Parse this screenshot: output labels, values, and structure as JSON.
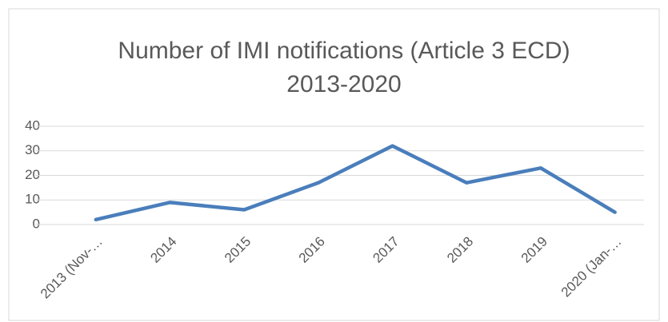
{
  "chart_data": {
    "type": "line",
    "title": [
      "Number of IMI notifications (Article 3 ECD)",
      "2013-2020"
    ],
    "categories": [
      "2013 (Nov-…",
      "2014",
      "2015",
      "2016",
      "2017",
      "2018",
      "2019",
      "2020 (Jan-…"
    ],
    "series": [
      {
        "name": "Number of IMI notifications",
        "color": "#4a7ebb",
        "values": [
          2,
          9,
          6,
          17,
          32,
          17,
          23,
          5
        ]
      }
    ],
    "ylim": [
      0,
      40
    ],
    "yticks": [
      0,
      10,
      20,
      30,
      40
    ],
    "grid": true
  }
}
